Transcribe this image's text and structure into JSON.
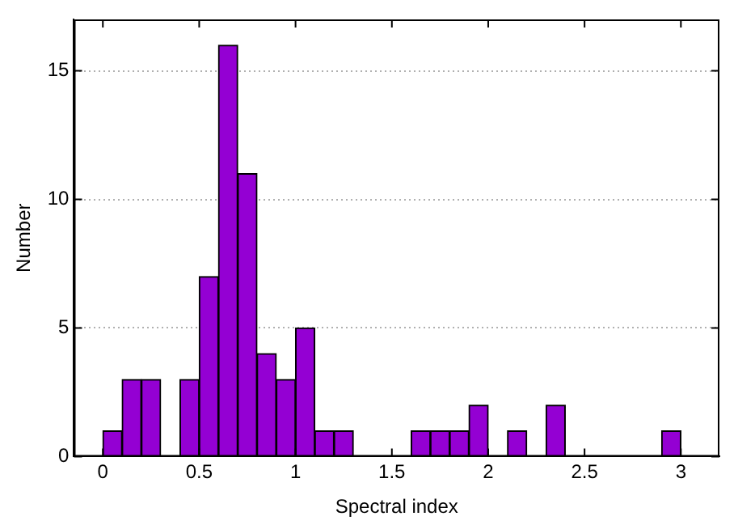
{
  "chart_data": {
    "type": "histogram",
    "xlabel": "Spectral index",
    "ylabel": "Number",
    "bins": [
      0,
      0.1,
      0.2,
      0.3,
      0.4,
      0.5,
      0.6,
      0.7,
      0.8,
      0.9,
      1.0,
      1.1,
      1.2,
      1.3,
      1.4,
      1.5,
      1.6,
      1.7,
      1.8,
      1.9,
      2.0,
      2.1,
      2.2,
      2.3,
      2.4,
      2.5,
      2.6,
      2.7,
      2.8,
      2.9,
      3.0
    ],
    "values": [
      1,
      3,
      3,
      0,
      3,
      7,
      16,
      11,
      4,
      3,
      5,
      1,
      1,
      0,
      0,
      0,
      1,
      1,
      1,
      2,
      0,
      1,
      0,
      2,
      0,
      0,
      0,
      0,
      0,
      1
    ],
    "color": "#9400d3",
    "xlim": [
      -0.15,
      3.2
    ],
    "xticks": [
      0,
      {
        "value": 0.5,
        "label": "0.5"
      },
      1,
      {
        "value": 1.5,
        "label": "1.5"
      },
      2,
      {
        "value": 2.5,
        "label": "2.5"
      },
      3
    ],
    "ylim": [
      0,
      17
    ],
    "yticks": [
      0,
      5,
      10,
      15
    ],
    "grid": "y",
    "legend": false
  }
}
